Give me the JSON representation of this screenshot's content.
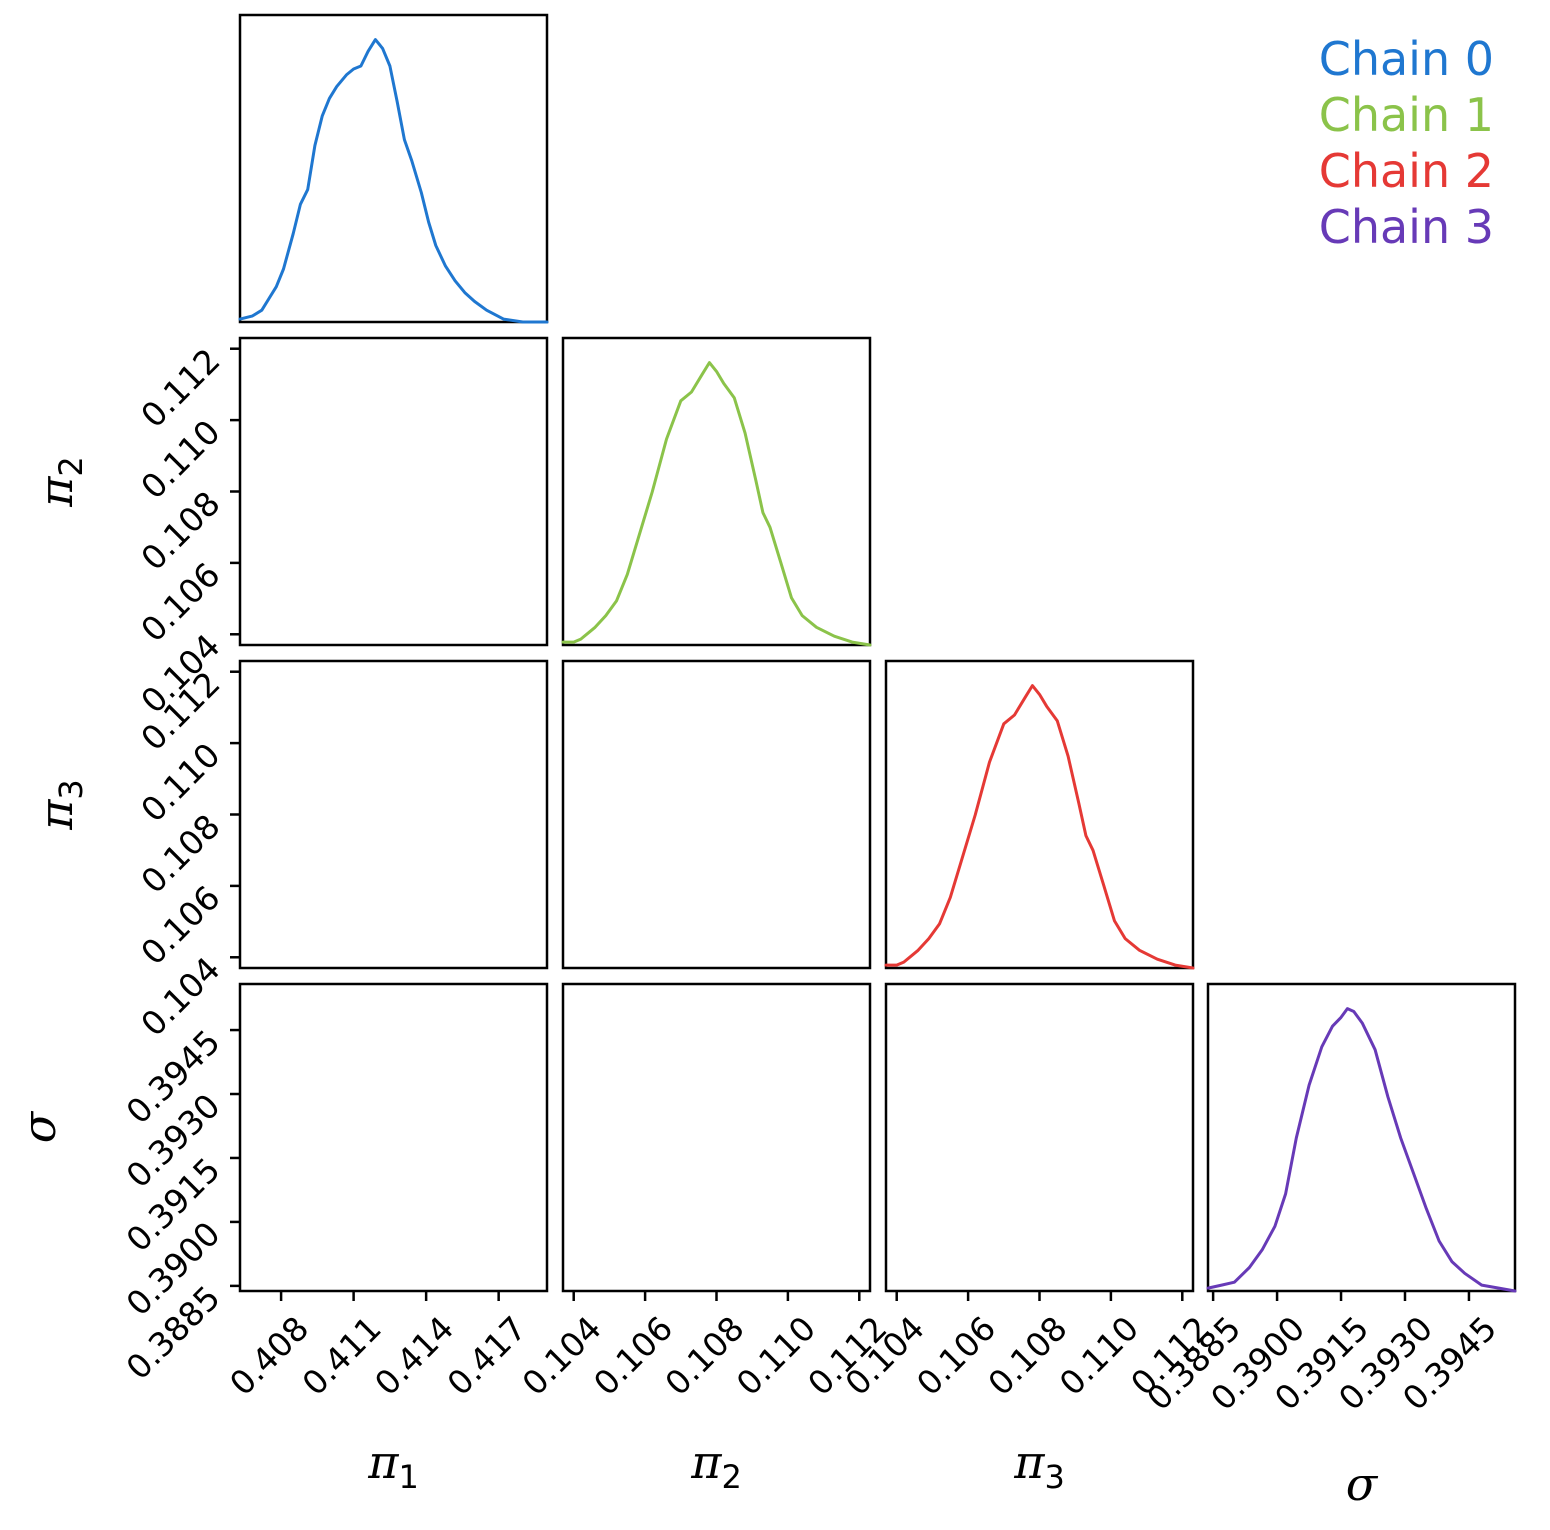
{
  "chart_data": {
    "type": "corner",
    "parameters": [
      {
        "symbol": "π",
        "sub": "1",
        "range": [
          0.4063,
          0.419
        ],
        "ticks": [
          "0.408",
          "0.411",
          "0.414",
          "0.417"
        ]
      },
      {
        "symbol": "π",
        "sub": "2",
        "range": [
          0.1037,
          0.1123
        ],
        "ticks": [
          "0.104",
          "0.106",
          "0.108",
          "0.110",
          "0.112"
        ]
      },
      {
        "symbol": "π",
        "sub": "3",
        "range": [
          0.1037,
          0.1123
        ],
        "ticks": [
          "0.104",
          "0.106",
          "0.108",
          "0.110",
          "0.112"
        ]
      },
      {
        "symbol": "σ",
        "sub": "",
        "range": [
          0.38838,
          0.39558
        ],
        "ticks": [
          "0.3885",
          "0.3900",
          "0.3915",
          "0.3930",
          "0.3945"
        ]
      }
    ],
    "legend": {
      "placement": "top-right",
      "entries": [
        {
          "label": "Chain 0",
          "color": "#1f77d0"
        },
        {
          "label": "Chain 1",
          "color": "#8bc34a"
        },
        {
          "label": "Chain 2",
          "color": "#e53935"
        },
        {
          "label": "Chain 3",
          "color": "#673ab7"
        }
      ]
    },
    "marginals": [
      {
        "chain": "Chain 0",
        "color": "#1f77d0",
        "x": [
          0.4063,
          0.4068,
          0.4072,
          0.4075,
          0.4078,
          0.4081,
          0.4085,
          0.4088,
          0.4091,
          0.4094,
          0.4097,
          0.41,
          0.4103,
          0.4107,
          0.411,
          0.4113,
          0.4116,
          0.4119,
          0.4122,
          0.4125,
          0.4128,
          0.4131,
          0.4134,
          0.4138,
          0.4141,
          0.4144,
          0.4148,
          0.4152,
          0.4156,
          0.416,
          0.4165,
          0.4172,
          0.418,
          0.419
        ],
        "density": [
          0.01,
          0.02,
          0.04,
          0.08,
          0.12,
          0.18,
          0.3,
          0.4,
          0.45,
          0.6,
          0.7,
          0.76,
          0.8,
          0.84,
          0.86,
          0.87,
          0.92,
          0.96,
          0.93,
          0.87,
          0.75,
          0.62,
          0.55,
          0.44,
          0.34,
          0.26,
          0.19,
          0.14,
          0.1,
          0.07,
          0.04,
          0.01,
          0.0,
          0.0
        ]
      },
      {
        "chain": "Chain 1",
        "color": "#8bc34a",
        "x": [
          0.1037,
          0.104,
          0.1042,
          0.1044,
          0.1046,
          0.1049,
          0.1052,
          0.1055,
          0.1058,
          0.1062,
          0.1066,
          0.107,
          0.1073,
          0.1076,
          0.1078,
          0.108,
          0.1082,
          0.1085,
          0.1088,
          0.1091,
          0.1093,
          0.1095,
          0.1098,
          0.1101,
          0.1104,
          0.1108,
          0.1113,
          0.1118,
          0.1123
        ],
        "density": [
          0.01,
          0.01,
          0.02,
          0.04,
          0.06,
          0.1,
          0.15,
          0.24,
          0.36,
          0.52,
          0.7,
          0.83,
          0.86,
          0.92,
          0.96,
          0.93,
          0.89,
          0.84,
          0.72,
          0.56,
          0.45,
          0.4,
          0.28,
          0.16,
          0.1,
          0.06,
          0.03,
          0.01,
          0.0
        ]
      },
      {
        "chain": "Chain 2",
        "color": "#e53935",
        "x": [
          0.1037,
          0.104,
          0.1042,
          0.1044,
          0.1046,
          0.1049,
          0.1052,
          0.1055,
          0.1058,
          0.1062,
          0.1066,
          0.107,
          0.1073,
          0.1076,
          0.1078,
          0.108,
          0.1082,
          0.1085,
          0.1088,
          0.1091,
          0.1093,
          0.1095,
          0.1098,
          0.1101,
          0.1104,
          0.1108,
          0.1113,
          0.1118,
          0.1123
        ],
        "density": [
          0.01,
          0.01,
          0.02,
          0.04,
          0.06,
          0.1,
          0.15,
          0.24,
          0.36,
          0.52,
          0.7,
          0.83,
          0.86,
          0.92,
          0.96,
          0.93,
          0.89,
          0.84,
          0.72,
          0.56,
          0.45,
          0.4,
          0.28,
          0.16,
          0.1,
          0.06,
          0.03,
          0.01,
          0.0
        ]
      },
      {
        "chain": "Chain 3",
        "color": "#673ab7",
        "x": [
          0.38838,
          0.3887,
          0.389,
          0.38935,
          0.38965,
          0.38995,
          0.3902,
          0.39045,
          0.39075,
          0.39105,
          0.3913,
          0.3915,
          0.39165,
          0.3918,
          0.392,
          0.3923,
          0.3926,
          0.3929,
          0.3932,
          0.3935,
          0.3938,
          0.3941,
          0.3944,
          0.3948,
          0.3952,
          0.39558
        ],
        "density": [
          0.01,
          0.02,
          0.03,
          0.08,
          0.14,
          0.22,
          0.33,
          0.52,
          0.7,
          0.83,
          0.9,
          0.93,
          0.96,
          0.95,
          0.91,
          0.82,
          0.66,
          0.52,
          0.4,
          0.28,
          0.17,
          0.1,
          0.06,
          0.02,
          0.01,
          0.0
        ]
      }
    ]
  }
}
